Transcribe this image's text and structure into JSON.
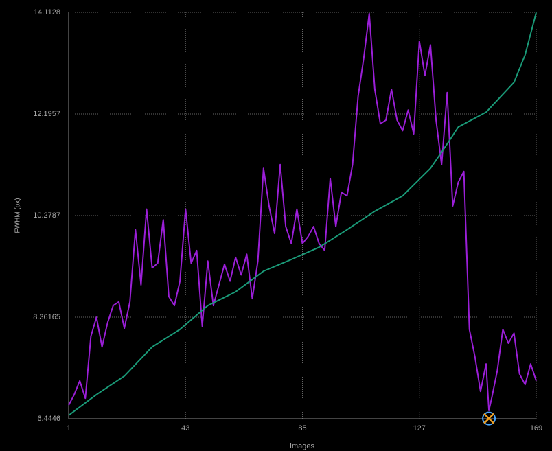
{
  "chart_data": {
    "type": "line",
    "xlabel": "Images",
    "ylabel": "FWHM (px)",
    "xlim": [
      1,
      169
    ],
    "xticks": [
      1,
      43,
      85,
      127,
      169
    ],
    "ylim": [
      6.4446,
      14.1128
    ],
    "yticks": [
      6.4446,
      8.36165,
      10.2787,
      12.1957,
      14.1128
    ],
    "grid": true,
    "series": [
      {
        "color": "#9b1fd8",
        "x": [
          1,
          3,
          5,
          7,
          9,
          11,
          13,
          15,
          17,
          19,
          21,
          23,
          25,
          27,
          29,
          31,
          33,
          35,
          37,
          39,
          41,
          43,
          45,
          47,
          49,
          51,
          53,
          55,
          57,
          59,
          61,
          63,
          65,
          67,
          69,
          71,
          73,
          75,
          77,
          79,
          81,
          83,
          85,
          87,
          89,
          91,
          93,
          95,
          97,
          99,
          101,
          103,
          105,
          107,
          109,
          111,
          113,
          115,
          117,
          119,
          121,
          123,
          125,
          127,
          129,
          131,
          133,
          135,
          137,
          139,
          141,
          143,
          145,
          147,
          149,
          151,
          152,
          153,
          155,
          157,
          159,
          161,
          163,
          165,
          167,
          169
        ],
        "values": [
          6.7,
          6.9,
          7.16,
          6.83,
          8.0,
          8.36,
          7.8,
          8.26,
          8.58,
          8.65,
          8.15,
          8.65,
          10.01,
          8.97,
          10.4,
          9.29,
          9.38,
          10.2,
          8.75,
          8.58,
          9.04,
          10.4,
          9.38,
          9.62,
          8.19,
          9.42,
          8.58,
          8.97,
          9.36,
          9.04,
          9.49,
          9.16,
          9.55,
          8.71,
          9.42,
          11.17,
          10.46,
          9.94,
          11.24,
          10.07,
          9.75,
          10.4,
          9.75,
          9.88,
          10.07,
          9.75,
          9.62,
          10.98,
          10.07,
          10.72,
          10.65,
          11.24,
          12.53,
          13.24,
          14.09,
          12.66,
          12.01,
          12.08,
          12.66,
          12.08,
          11.88,
          12.27,
          11.82,
          13.57,
          12.92,
          13.5,
          12.08,
          11.24,
          12.6,
          10.46,
          10.91,
          11.11,
          8.13,
          7.61,
          6.96,
          7.48,
          6.6,
          6.83,
          7.35,
          8.13,
          7.87,
          8.06,
          7.29,
          7.09,
          7.48,
          7.16
        ]
      },
      {
        "color": "#1a9a78",
        "x": [
          1,
          11,
          21,
          31,
          41,
          51,
          61,
          71,
          81,
          91,
          101,
          111,
          121,
          131,
          137,
          141,
          151,
          161,
          165,
          169
        ],
        "values": [
          6.51,
          6.9,
          7.25,
          7.8,
          8.13,
          8.58,
          8.84,
          9.23,
          9.45,
          9.68,
          10.01,
          10.36,
          10.65,
          11.17,
          11.63,
          11.95,
          12.23,
          12.79,
          13.31,
          14.11
        ]
      }
    ],
    "highlight_point": {
      "x": 152,
      "y": 6.45
    }
  }
}
